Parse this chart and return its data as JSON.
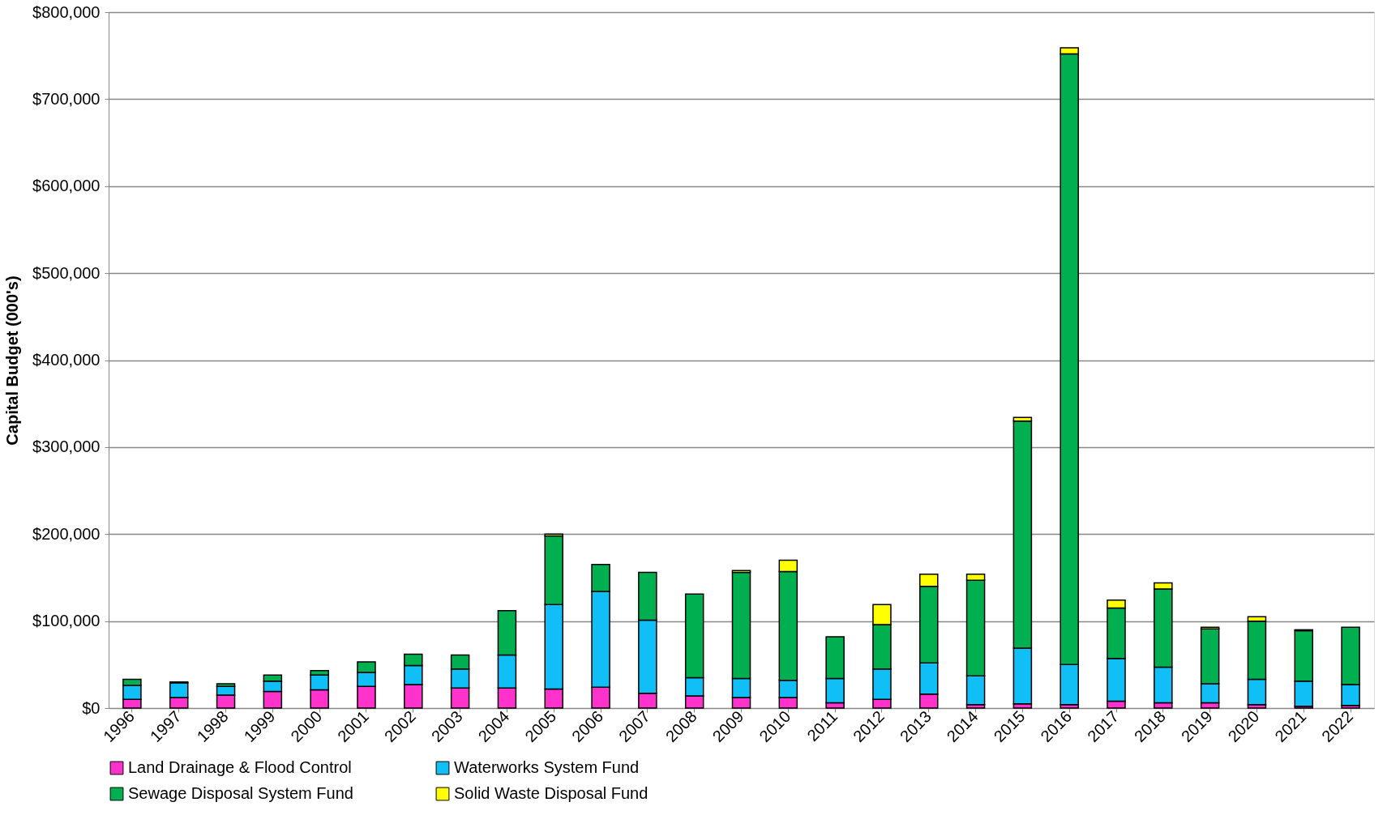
{
  "chart_data": {
    "type": "bar",
    "stacked": true,
    "ylabel": "Capital Budget (000's)",
    "categories": [
      "1996",
      "1997",
      "1998",
      "1999",
      "2000",
      "2001",
      "2002",
      "2003",
      "2004",
      "2005",
      "2006",
      "2007",
      "2008",
      "2009",
      "2010",
      "2011",
      "2012",
      "2013",
      "2014",
      "2015",
      "2016",
      "2017",
      "2018",
      "2019",
      "2020",
      "2021",
      "2022"
    ],
    "series": [
      {
        "name": "Land Drainage & Flood Control",
        "color": "#ff33cc",
        "values": [
          10000,
          12000,
          15000,
          19000,
          21000,
          25000,
          27000,
          23000,
          23000,
          22000,
          24000,
          17000,
          14000,
          12000,
          12000,
          6000,
          10000,
          16000,
          4000,
          5000,
          4000,
          8000,
          6000,
          6000,
          4000,
          2000,
          3000
        ]
      },
      {
        "name": "Waterworks System Fund",
        "color": "#0fbff5",
        "values": [
          16000,
          17000,
          10000,
          12000,
          17000,
          16000,
          22000,
          22000,
          38000,
          97000,
          110000,
          84000,
          21000,
          22000,
          20000,
          28000,
          35000,
          36000,
          33000,
          64000,
          46000,
          49000,
          41000,
          22000,
          29000,
          29000,
          24000
        ]
      },
      {
        "name": "Sewage Disposal System Fund",
        "color": "#00b050",
        "values": [
          7000,
          1000,
          3000,
          7000,
          5000,
          12000,
          13000,
          16000,
          51000,
          79000,
          31000,
          55000,
          96000,
          122000,
          125000,
          48000,
          51000,
          88000,
          110000,
          261000,
          702000,
          58000,
          90000,
          63000,
          67000,
          58000,
          66000
        ]
      },
      {
        "name": "Solid Waste Disposal Fund",
        "color": "#ffff00",
        "values": [
          null,
          null,
          null,
          null,
          null,
          null,
          null,
          null,
          null,
          2000,
          null,
          null,
          null,
          2000,
          13000,
          null,
          23000,
          14000,
          7000,
          4000,
          7000,
          9000,
          7000,
          2000,
          5000,
          1000,
          null
        ]
      }
    ],
    "ylim": [
      0,
      800000
    ],
    "yticks": [
      {
        "value": 0,
        "label": "$0"
      },
      {
        "value": 100000,
        "label": "$100,000"
      },
      {
        "value": 200000,
        "label": "$200,000"
      },
      {
        "value": 300000,
        "label": "$300,000"
      },
      {
        "value": 400000,
        "label": "$400,000"
      },
      {
        "value": 500000,
        "label": "$500,000"
      },
      {
        "value": 600000,
        "label": "$600,000"
      },
      {
        "value": 700000,
        "label": "$700,000"
      },
      {
        "value": 800000,
        "label": "$800,000"
      }
    ],
    "grid": "y",
    "legend": "bottom"
  }
}
